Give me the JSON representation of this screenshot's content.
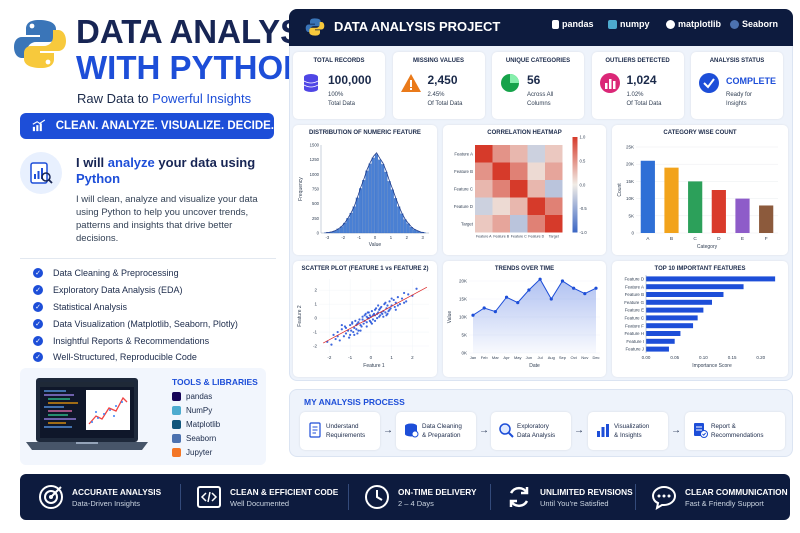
{
  "left": {
    "title_line1": "DATA ANALYSIS",
    "title_line2": "WITH PYTHON",
    "subtitle_pre": "Raw Data to ",
    "subtitle_hl": "Powerful Insights",
    "tagline": "CLEAN. ANALYZE. VISUALIZE. DECIDE.",
    "intro_head_1": "I will ",
    "intro_head_hl1": "analyze",
    "intro_head_2": " your data using ",
    "intro_head_hl2": "Python",
    "intro_body": "I will clean, analyze and visualize your data using Python to help you uncover trends, patterns and insights that drive better decisions.",
    "services": [
      "Data Cleaning & Preprocessing",
      "Exploratory Data Analysis (EDA)",
      "Statistical Analysis",
      "Data Visualization (Matplotlib, Seaborn, Plotly)",
      "Insightful Reports & Recommendations",
      "Well-Structured, Reproducible Code"
    ],
    "tools_heading": "TOOLS & LIBRARIES",
    "tools": [
      {
        "name": "pandas",
        "color": "#150458"
      },
      {
        "name": "NumPy",
        "color": "#4dabcf"
      },
      {
        "name": "Matplotlib",
        "color": "#11557c"
      },
      {
        "name": "Seaborn",
        "color": "#4c72b0"
      },
      {
        "name": "Jupyter",
        "color": "#f37626"
      }
    ]
  },
  "dashboard": {
    "title": "DATA ANALYSIS PROJECT",
    "libraries": [
      "pandas",
      "numpy",
      "matplotlib",
      "Seaborn"
    ],
    "kpis": [
      {
        "label": "TOTAL RECORDS",
        "value": "100,000",
        "sub1": "100%",
        "sub2": "Total Data",
        "color": "#4f46e5",
        "icon": "database-icon"
      },
      {
        "label": "MISSING VALUES",
        "value": "2,450",
        "sub1": "2.45%",
        "sub2": "Of Total Data",
        "color": "#ea7a1a",
        "icon": "warning-icon"
      },
      {
        "label": "UNIQUE CATEGORIES",
        "value": "56",
        "sub1": "Across All",
        "sub2": "Columns",
        "color": "#16a34a",
        "icon": "pie-chart-icon"
      },
      {
        "label": "OUTLIERS DETECTED",
        "value": "1,024",
        "sub1": "1.02%",
        "sub2": "Of Total Data",
        "color": "#db2777",
        "icon": "bar-chart-icon"
      },
      {
        "label": "ANALYSIS STATUS",
        "value": "COMPLETE",
        "sub1": "Ready for",
        "sub2": "Insights",
        "color": "#1d4ed8",
        "icon": "check-circle-icon"
      }
    ]
  },
  "chart_data": [
    {
      "type": "bar",
      "title": "DISTRIBUTION OF NUMERIC FEATURE",
      "xlabel": "Value",
      "ylabel": "Frequency",
      "x_ticks": [
        "-3",
        "-2",
        "-1",
        "0",
        "1",
        "2",
        "3"
      ],
      "y_ticks": [
        "0",
        "250",
        "500",
        "750",
        "1000",
        "1250",
        "1500"
      ],
      "ylim": [
        0,
        1500
      ],
      "xlim": [
        -3.4,
        3.4
      ],
      "bin_centers": [
        -3.1,
        -2.9,
        -2.7,
        -2.5,
        -2.3,
        -2.1,
        -1.9,
        -1.7,
        -1.5,
        -1.3,
        -1.1,
        -0.9,
        -0.7,
        -0.5,
        -0.3,
        -0.1,
        0.1,
        0.3,
        0.5,
        0.7,
        0.9,
        1.1,
        1.3,
        1.5,
        1.7,
        1.9,
        2.1,
        2.3,
        2.5,
        2.7,
        2.9,
        3.1
      ],
      "values": [
        5,
        10,
        20,
        40,
        70,
        110,
        170,
        250,
        340,
        450,
        600,
        760,
        900,
        1060,
        1180,
        1280,
        1340,
        1250,
        1170,
        1040,
        880,
        740,
        590,
        450,
        330,
        230,
        160,
        100,
        60,
        35,
        15,
        8
      ],
      "color": "#4a80d4"
    },
    {
      "type": "heatmap",
      "title": "CORRELATION HEATMAP",
      "rows": [
        "Feature A",
        "Feature B",
        "Feature C",
        "Feature D",
        "Target"
      ],
      "cols": [
        "Feature A",
        "Feature B",
        "Feature C",
        "Feature D",
        "Target"
      ],
      "values": [
        [
          1.0,
          0.5,
          0.3,
          -0.2,
          0.2
        ],
        [
          0.5,
          1.0,
          0.6,
          0.1,
          0.4
        ],
        [
          0.3,
          0.6,
          1.0,
          0.3,
          -0.3
        ],
        [
          -0.2,
          0.1,
          0.3,
          1.0,
          0.6
        ],
        [
          0.2,
          0.4,
          -0.3,
          0.6,
          1.0
        ]
      ],
      "colorbar_ticks": [
        "1.0",
        "0.5",
        "0.0",
        "-0.5",
        "-1.0"
      ],
      "range": [
        -1,
        1
      ]
    },
    {
      "type": "bar",
      "title": "CATEGORY WISE COUNT",
      "xlabel": "Category",
      "ylabel": "Count",
      "categories": [
        "A",
        "B",
        "C",
        "D",
        "E",
        "F"
      ],
      "values": [
        21000,
        19000,
        15000,
        12500,
        10000,
        8000
      ],
      "colors": [
        "#2e6fd6",
        "#f2a31b",
        "#2ca05a",
        "#d93a2b",
        "#8e5cc9",
        "#8c5a3c"
      ],
      "y_ticks": [
        "0",
        "5K",
        "10K",
        "15K",
        "20K",
        "25K"
      ],
      "ylim": [
        0,
        25000
      ]
    },
    {
      "type": "scatter",
      "title": "SCATTER PLOT (FEATURE 1 vs FEATURE 2)",
      "xlabel": "Feature 1",
      "ylabel": "Feature 2",
      "x_ticks": [
        "-2",
        "-1",
        "0",
        "1",
        "2"
      ],
      "y_ticks": [
        "-2",
        "-1",
        "0",
        "1",
        "2"
      ],
      "xlim": [
        -2.5,
        2.8
      ],
      "ylim": [
        -2.5,
        2.8
      ],
      "trend": {
        "slope": 0.8,
        "intercept": 0.05
      },
      "points": [
        [
          -2.1,
          -1.7
        ],
        [
          -1.9,
          -1.9
        ],
        [
          -1.8,
          -1.2
        ],
        [
          -1.7,
          -1.5
        ],
        [
          -1.6,
          -1.0
        ],
        [
          -1.5,
          -1.6
        ],
        [
          -1.4,
          -0.8
        ],
        [
          -1.3,
          -1.3
        ],
        [
          -1.25,
          -0.6
        ],
        [
          -1.2,
          -1.1
        ],
        [
          -1.1,
          -0.9
        ],
        [
          -1.05,
          -1.4
        ],
        [
          -1.0,
          -0.5
        ],
        [
          -0.95,
          -0.9
        ],
        [
          -0.9,
          -0.3
        ],
        [
          -0.85,
          -1.0
        ],
        [
          -0.8,
          -0.7
        ],
        [
          -0.75,
          -0.2
        ],
        [
          -0.7,
          -0.8
        ],
        [
          -0.65,
          -0.4
        ],
        [
          -0.6,
          -0.9
        ],
        [
          -0.55,
          -0.1
        ],
        [
          -0.5,
          -0.5
        ],
        [
          -0.45,
          -0.6
        ],
        [
          -0.4,
          0.1
        ],
        [
          -0.35,
          -0.4
        ],
        [
          -0.3,
          -0.2
        ],
        [
          -0.25,
          0.3
        ],
        [
          -0.2,
          -0.3
        ],
        [
          -0.15,
          0.0
        ],
        [
          -0.1,
          0.4
        ],
        [
          -0.05,
          -0.2
        ],
        [
          0.0,
          0.1
        ],
        [
          0.05,
          0.5
        ],
        [
          0.1,
          -0.1
        ],
        [
          0.15,
          0.3
        ],
        [
          0.2,
          0.2
        ],
        [
          0.25,
          0.7
        ],
        [
          0.3,
          0.0
        ],
        [
          0.35,
          0.4
        ],
        [
          0.4,
          0.6
        ],
        [
          0.45,
          0.2
        ],
        [
          0.5,
          0.8
        ],
        [
          0.55,
          0.3
        ],
        [
          0.6,
          0.5
        ],
        [
          0.65,
          1.0
        ],
        [
          0.7,
          0.4
        ],
        [
          0.75,
          0.7
        ],
        [
          0.8,
          0.9
        ],
        [
          0.85,
          0.5
        ],
        [
          0.9,
          1.2
        ],
        [
          0.95,
          0.7
        ],
        [
          1.0,
          0.9
        ],
        [
          1.1,
          1.3
        ],
        [
          1.15,
          0.8
        ],
        [
          1.2,
          1.1
        ],
        [
          1.3,
          1.5
        ],
        [
          1.4,
          1.0
        ],
        [
          1.5,
          1.4
        ],
        [
          1.6,
          1.8
        ],
        [
          1.7,
          1.2
        ],
        [
          1.8,
          1.7
        ],
        [
          2.0,
          1.6
        ],
        [
          2.2,
          2.1
        ],
        [
          -0.6,
          -0.3
        ],
        [
          -0.3,
          0.2
        ],
        [
          0.0,
          -0.3
        ],
        [
          0.2,
          0.6
        ],
        [
          -0.1,
          0.0
        ],
        [
          0.4,
          0.1
        ],
        [
          -0.8,
          -1.2
        ],
        [
          0.7,
          1.1
        ],
        [
          -1.4,
          -0.5
        ],
        [
          1.2,
          0.6
        ],
        [
          0.1,
          0.2
        ],
        [
          -0.2,
          -0.6
        ],
        [
          0.3,
          0.3
        ],
        [
          0.6,
          0.1
        ],
        [
          -0.5,
          -0.9
        ],
        [
          0.9,
          0.6
        ],
        [
          -1.0,
          -1.2
        ],
        [
          1.0,
          1.4
        ],
        [
          -0.7,
          -0.5
        ],
        [
          0.5,
          0.4
        ],
        [
          -0.4,
          -0.1
        ],
        [
          0.2,
          -0.2
        ],
        [
          -0.15,
          0.4
        ],
        [
          0.35,
          0.9
        ],
        [
          -0.9,
          -0.4
        ],
        [
          0.8,
          0.3
        ],
        [
          -1.6,
          -1.3
        ],
        [
          1.6,
          1.1
        ],
        [
          -0.2,
          0.1
        ],
        [
          0.05,
          -0.4
        ],
        [
          0.45,
          0.7
        ],
        [
          -0.65,
          -1.1
        ],
        [
          0.75,
          0.2
        ],
        [
          -1.2,
          -0.7
        ],
        [
          1.3,
          0.9
        ],
        [
          -0.05,
          0.2
        ]
      ]
    },
    {
      "type": "area",
      "title": "TRENDS OVER TIME",
      "xlabel": "Date",
      "ylabel": "Value",
      "categories": [
        "Jan",
        "Feb",
        "Mar",
        "Apr",
        "May",
        "Jun",
        "Jul",
        "Aug",
        "Sep",
        "Oct",
        "Nov",
        "Dec"
      ],
      "values": [
        10500,
        12500,
        11500,
        15500,
        14000,
        17500,
        20500,
        15000,
        20000,
        18000,
        16500,
        18000
      ],
      "y_ticks": [
        "0K",
        "5K",
        "10K",
        "15K",
        "20K"
      ],
      "ylim": [
        0,
        20000
      ],
      "color": "#1d4ed8"
    },
    {
      "type": "bar",
      "orientation": "horizontal",
      "title": "TOP 10 IMPORTANT FEATURES",
      "xlabel": "Importance Score",
      "categories": [
        "Feature D",
        "Feature A",
        "Feature B",
        "Feature G",
        "Feature E",
        "Feature C",
        "Feature F",
        "Feature H",
        "Feature I",
        "Feature J"
      ],
      "values": [
        0.225,
        0.17,
        0.135,
        0.115,
        0.1,
        0.09,
        0.082,
        0.06,
        0.05,
        0.04
      ],
      "x_ticks": [
        "0.00",
        "0.05",
        "0.10",
        "0.15",
        "0.20"
      ],
      "xlim": [
        0,
        0.23
      ],
      "color": "#1d4ed8"
    }
  ],
  "process": {
    "title": "MY ANALYSIS PROCESS",
    "steps": [
      {
        "l1": "Understand",
        "l2": "Requirements",
        "icon": "document-icon"
      },
      {
        "l1": "Data Cleaning",
        "l2": "& Preparation",
        "icon": "database-icon"
      },
      {
        "l1": "Exploratory",
        "l2": "Data Analysis",
        "icon": "search-icon"
      },
      {
        "l1": "Visualization",
        "l2": "& Insights",
        "icon": "bar-chart-icon"
      },
      {
        "l1": "Report &",
        "l2": "Recommendations",
        "icon": "report-icon"
      }
    ]
  },
  "footer": [
    {
      "t1": "ACCURATE ANALYSIS",
      "t2": "Data-Driven Insights",
      "icon": "target-icon"
    },
    {
      "t1": "CLEAN & EFFICIENT CODE",
      "t2": "Well Documented",
      "icon": "code-icon"
    },
    {
      "t1": "ON-TIME DELIVERY",
      "t2": "2 – 4 Days",
      "icon": "clock-icon"
    },
    {
      "t1": "UNLIMITED REVISIONS",
      "t2": "Until You're Satisfied",
      "icon": "refresh-icon"
    },
    {
      "t1": "CLEAR COMMUNICATION",
      "t2": "Fast & Friendly Support",
      "icon": "chat-icon"
    }
  ]
}
